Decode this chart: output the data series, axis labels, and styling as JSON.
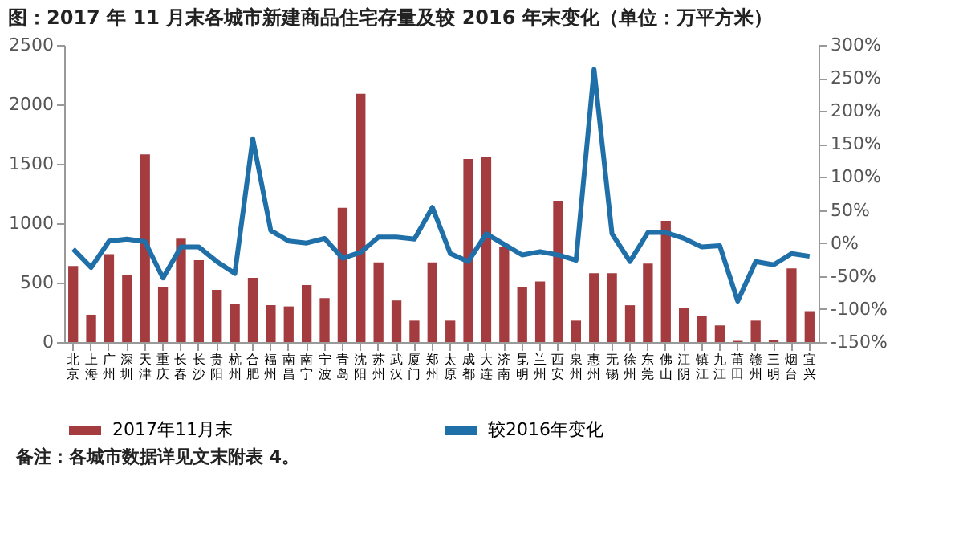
{
  "chart_data": {
    "type": "bar",
    "title": "图：2017 年 11 月末各城市新建商品住宅存量及较 2016 年末变化（单位：万平方米）",
    "categories": [
      "北京",
      "上海",
      "广州",
      "深圳",
      "天津",
      "重庆",
      "长春",
      "长沙",
      "贵阳",
      "杭州",
      "合肥",
      "福州",
      "南昌",
      "南宁",
      "宁波",
      "青岛",
      "沈阳",
      "苏州",
      "武汉",
      "厦门",
      "郑州",
      "太原",
      "成都",
      "大连",
      "济南",
      "昆明",
      "兰州",
      "西安",
      "泉州",
      "惠州",
      "无锡",
      "徐州",
      "东莞",
      "佛山",
      "江阴",
      "镇江",
      "九江",
      "莆田",
      "赣州",
      "三明",
      "烟台",
      "宜兴"
    ],
    "series": [
      {
        "name": "2017年11月末",
        "color": "#a33b3f",
        "values": [
          640,
          230,
          740,
          560,
          1580,
          460,
          870,
          690,
          440,
          320,
          540,
          310,
          300,
          480,
          370,
          1130,
          2090,
          670,
          350,
          180,
          670,
          180,
          1540,
          1560,
          800,
          460,
          510,
          1190,
          180,
          580,
          580,
          310,
          660,
          1020,
          290,
          220,
          140,
          10,
          180,
          20,
          620,
          260
        ]
      },
      {
        "name": "较2016年变化",
        "type": "line",
        "axis": "y2",
        "color": "#1f6fa8",
        "values": [
          -9,
          -37,
          3,
          6,
          2,
          -53,
          -6,
          -6,
          -28,
          -46,
          158,
          19,
          3,
          0,
          7,
          -23,
          -14,
          9,
          9,
          6,
          54,
          -16,
          -28,
          14,
          -2,
          -18,
          -13,
          -18,
          -26,
          263,
          14,
          -28,
          16,
          16,
          7,
          -6,
          -4,
          -88,
          -28,
          -33,
          -16,
          -20
        ]
      }
    ],
    "ylim": [
      0,
      2500
    ],
    "yticks": [
      0,
      500,
      1000,
      1500,
      2000,
      2500
    ],
    "y2lim": [
      -150,
      300
    ],
    "y2ticks": [
      {
        "value": -150,
        "label": "-150%"
      },
      {
        "value": -100,
        "label": "-100%"
      },
      {
        "value": -50,
        "label": "-50%"
      },
      {
        "value": 0,
        "label": "0%"
      },
      {
        "value": 50,
        "label": "50%"
      },
      {
        "value": 100,
        "label": "100%"
      },
      {
        "value": 150,
        "label": "150%"
      },
      {
        "value": 200,
        "label": "200%"
      },
      {
        "value": 250,
        "label": "250%"
      },
      {
        "value": 300,
        "label": "300%"
      }
    ],
    "grid": false,
    "legend": "bottom",
    "marker": "none",
    "line_style": "solid",
    "annotations": [
      "备注：各城市数据详见文末附表 4。"
    ]
  }
}
